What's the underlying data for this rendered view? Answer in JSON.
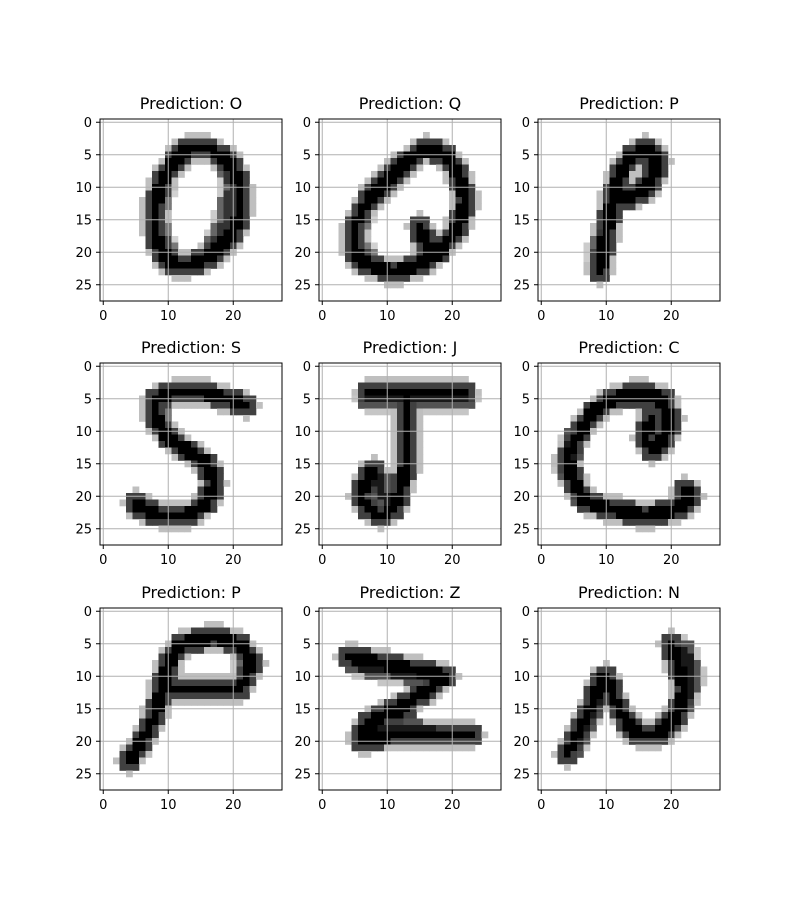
{
  "figure": {
    "background": "#ffffff",
    "grid": true,
    "grid_color": "#b0b0b0",
    "colormap": "gray_r"
  },
  "chart_data": [
    {
      "type": "heatmap",
      "title": "Prediction: O",
      "xlim": [
        0,
        27
      ],
      "ylim": [
        27,
        0
      ],
      "xticks": [
        "0",
        "10",
        "20"
      ],
      "yticks": [
        "0",
        "5",
        "10",
        "15",
        "20",
        "25"
      ],
      "strokes": [
        {
          "path": [
            [
              13,
              4
            ],
            [
              16,
              4
            ],
            [
              18,
              5
            ],
            [
              20,
              7
            ],
            [
              21,
              10
            ],
            [
              21,
              14
            ],
            [
              20,
              17
            ],
            [
              18,
              19
            ],
            [
              16,
              21
            ],
            [
              13,
              22
            ],
            [
              11,
              22
            ],
            [
              9,
              20
            ],
            [
              8,
              17
            ],
            [
              8,
              13
            ],
            [
              9,
              9
            ],
            [
              11,
              6
            ],
            [
              13,
              4
            ]
          ],
          "intensity": 1.0
        },
        {
          "path": [
            [
              19,
              6
            ],
            [
              20,
              10
            ],
            [
              19,
              15
            ],
            [
              17,
              19
            ]
          ],
          "intensity": 0.8
        },
        {
          "path": [
            [
              9,
              10
            ],
            [
              8,
              15
            ],
            [
              10,
              21
            ]
          ],
          "intensity": 0.7
        }
      ]
    },
    {
      "type": "heatmap",
      "title": "Prediction: Q",
      "xlim": [
        0,
        27
      ],
      "ylim": [
        27,
        0
      ],
      "xticks": [
        "0",
        "10",
        "20"
      ],
      "yticks": [
        "0",
        "5",
        "10",
        "15",
        "20",
        "25"
      ],
      "strokes": [
        {
          "path": [
            [
              16,
              4
            ],
            [
              13,
              6
            ],
            [
              10,
              9
            ],
            [
              7,
              12
            ],
            [
              5,
              16
            ],
            [
              5,
              20
            ],
            [
              7,
              22
            ],
            [
              11,
              23
            ],
            [
              15,
              22
            ],
            [
              18,
              20
            ],
            [
              21,
              16
            ],
            [
              22,
              12
            ],
            [
              21,
              8
            ],
            [
              19,
              5
            ],
            [
              16,
              4
            ]
          ],
          "intensity": 1.0
        },
        {
          "path": [
            [
              15,
              16
            ],
            [
              16,
              19
            ],
            [
              17,
              20
            ],
            [
              18,
              19
            ]
          ],
          "intensity": 1.0
        },
        {
          "path": [
            [
              6,
              14
            ],
            [
              5,
              18
            ],
            [
              7,
              21
            ]
          ],
          "intensity": 0.7
        }
      ]
    },
    {
      "type": "heatmap",
      "title": "Prediction: P",
      "xlim": [
        0,
        27
      ],
      "ylim": [
        27,
        0
      ],
      "xticks": [
        "0",
        "10",
        "20"
      ],
      "yticks": [
        "0",
        "5",
        "10",
        "15",
        "20",
        "25"
      ],
      "strokes": [
        {
          "path": [
            [
              9,
              23
            ],
            [
              10,
              17
            ],
            [
              11,
              12
            ],
            [
              12,
              8
            ],
            [
              14,
              5
            ],
            [
              16,
              4
            ],
            [
              18,
              6
            ],
            [
              17,
              9
            ],
            [
              15,
              11
            ],
            [
              12,
              12
            ]
          ],
          "intensity": 1.0
        },
        {
          "path": [
            [
              9,
              22
            ],
            [
              9,
              20
            ],
            [
              10,
              16
            ]
          ],
          "intensity": 0.8
        }
      ]
    },
    {
      "type": "heatmap",
      "title": "Prediction: S",
      "xlim": [
        0,
        27
      ],
      "ylim": [
        27,
        0
      ],
      "xticks": [
        "0",
        "10",
        "20"
      ],
      "yticks": [
        "0",
        "5",
        "10",
        "15",
        "20",
        "25"
      ],
      "strokes": [
        {
          "path": [
            [
              22,
              6
            ],
            [
              19,
              5
            ],
            [
              15,
              4
            ],
            [
              11,
              4
            ],
            [
              8,
              5
            ],
            [
              8,
              8
            ],
            [
              10,
              11
            ],
            [
              13,
              13
            ],
            [
              16,
              15
            ],
            [
              17,
              18
            ],
            [
              16,
              21
            ],
            [
              13,
              23
            ],
            [
              9,
              23
            ],
            [
              6,
              22
            ],
            [
              5,
              21
            ]
          ],
          "intensity": 1.0
        },
        {
          "path": [
            [
              8,
              6
            ],
            [
              9,
              9
            ]
          ],
          "intensity": 0.7
        }
      ]
    },
    {
      "type": "heatmap",
      "title": "Prediction: J",
      "xlim": [
        0,
        27
      ],
      "ylim": [
        27,
        0
      ],
      "xticks": [
        "0",
        "10",
        "20"
      ],
      "yticks": [
        "0",
        "5",
        "10",
        "15",
        "20",
        "25"
      ],
      "strokes": [
        {
          "path": [
            [
              7,
              4
            ],
            [
              12,
              4
            ],
            [
              17,
              4
            ],
            [
              22,
              4
            ]
          ],
          "intensity": 1.0
        },
        {
          "path": [
            [
              7,
              5
            ],
            [
              12,
              5
            ],
            [
              17,
              5
            ],
            [
              22,
              5
            ]
          ],
          "intensity": 0.9
        },
        {
          "path": [
            [
              13,
              5
            ],
            [
              13,
              10
            ],
            [
              13,
              15
            ],
            [
              12,
              19
            ],
            [
              11,
              22
            ],
            [
              9,
              23
            ],
            [
              7,
              22
            ],
            [
              6,
              20
            ],
            [
              7,
              17
            ],
            [
              8,
              16
            ]
          ],
          "intensity": 1.0
        },
        {
          "path": [
            [
              8,
              16
            ],
            [
              9,
              19
            ],
            [
              10,
              21
            ]
          ],
          "intensity": 0.9
        }
      ]
    },
    {
      "type": "heatmap",
      "title": "Prediction: C",
      "xlim": [
        0,
        27
      ],
      "ylim": [
        27,
        0
      ],
      "xticks": [
        "0",
        "10",
        "20"
      ],
      "yticks": [
        "0",
        "5",
        "10",
        "15",
        "20",
        "25"
      ],
      "strokes": [
        {
          "path": [
            [
              19,
              5
            ],
            [
              15,
              4
            ],
            [
              11,
              5
            ],
            [
              8,
              7
            ],
            [
              6,
              10
            ],
            [
              4,
              14
            ],
            [
              5,
              18
            ],
            [
              7,
              21
            ],
            [
              11,
              22
            ],
            [
              16,
              23
            ],
            [
              21,
              22
            ],
            [
              23,
              20
            ],
            [
              22,
              19
            ]
          ],
          "intensity": 1.0
        },
        {
          "path": [
            [
              15,
              5
            ],
            [
              18,
              5
            ],
            [
              20,
              8
            ],
            [
              19,
              11
            ],
            [
              17,
              13
            ],
            [
              16,
              11
            ],
            [
              17,
              8
            ]
          ],
          "intensity": 1.0
        },
        {
          "path": [
            [
              5,
              11
            ],
            [
              4,
              16
            ],
            [
              6,
              20
            ]
          ],
          "intensity": 0.9
        }
      ]
    },
    {
      "type": "heatmap",
      "title": "Prediction: P",
      "xlim": [
        0,
        27
      ],
      "ylim": [
        27,
        0
      ],
      "xticks": [
        "0",
        "10",
        "20"
      ],
      "yticks": [
        "0",
        "5",
        "10",
        "15",
        "20",
        "25"
      ],
      "strokes": [
        {
          "path": [
            [
              4,
              23
            ],
            [
              6,
              20
            ],
            [
              8,
              16
            ],
            [
              9,
              12
            ],
            [
              10,
              8
            ],
            [
              12,
              5
            ],
            [
              17,
              4
            ],
            [
              21,
              5
            ],
            [
              23,
              8
            ],
            [
              21,
              12
            ],
            [
              16,
              12
            ],
            [
              10,
              12
            ]
          ],
          "intensity": 1.0
        },
        {
          "path": [
            [
              22,
              7
            ],
            [
              22,
              10
            ]
          ],
          "intensity": 0.8
        }
      ]
    },
    {
      "type": "heatmap",
      "title": "Prediction: Z",
      "xlim": [
        0,
        27
      ],
      "ylim": [
        27,
        0
      ],
      "xticks": [
        "0",
        "10",
        "20"
      ],
      "yticks": [
        "0",
        "5",
        "10",
        "15",
        "20",
        "25"
      ],
      "strokes": [
        {
          "path": [
            [
              4,
              7
            ],
            [
              9,
              8
            ],
            [
              14,
              9
            ],
            [
              19,
              10
            ]
          ],
          "intensity": 1.0
        },
        {
          "path": [
            [
              5,
              8
            ],
            [
              10,
              9
            ],
            [
              16,
              10
            ]
          ],
          "intensity": 0.9
        },
        {
          "path": [
            [
              19,
              10
            ],
            [
              15,
              13
            ],
            [
              11,
              15
            ],
            [
              8,
              17
            ],
            [
              6,
              19
            ]
          ],
          "intensity": 1.0
        },
        {
          "path": [
            [
              7,
              17
            ],
            [
              10,
              16
            ],
            [
              13,
              15
            ]
          ],
          "intensity": 1.0
        },
        {
          "path": [
            [
              6,
              20
            ],
            [
              11,
              19
            ],
            [
              16,
              19
            ],
            [
              21,
              19
            ],
            [
              23,
              19
            ]
          ],
          "intensity": 1.0
        },
        {
          "path": [
            [
              7,
              19
            ],
            [
              12,
              18
            ],
            [
              18,
              19
            ]
          ],
          "intensity": 0.9
        }
      ]
    },
    {
      "type": "heatmap",
      "title": "Prediction: N",
      "xlim": [
        0,
        27
      ],
      "ylim": [
        27,
        0
      ],
      "xticks": [
        "0",
        "10",
        "20"
      ],
      "yticks": [
        "0",
        "5",
        "10",
        "15",
        "20",
        "25"
      ],
      "strokes": [
        {
          "path": [
            [
              4,
              22
            ],
            [
              6,
              18
            ],
            [
              8,
              14
            ],
            [
              9,
              11
            ],
            [
              10,
              10
            ],
            [
              11,
              13
            ],
            [
              13,
              17
            ],
            [
              15,
              19
            ],
            [
              18,
              19
            ],
            [
              21,
              16
            ],
            [
              22,
              12
            ],
            [
              21,
              8
            ],
            [
              20,
              5
            ]
          ],
          "intensity": 1.0
        },
        {
          "path": [
            [
              5,
              21
            ],
            [
              7,
              17
            ],
            [
              9,
              13
            ]
          ],
          "intensity": 0.9
        },
        {
          "path": [
            [
              22,
              6
            ],
            [
              23,
              10
            ],
            [
              22,
              14
            ]
          ],
          "intensity": 0.9
        }
      ]
    }
  ]
}
